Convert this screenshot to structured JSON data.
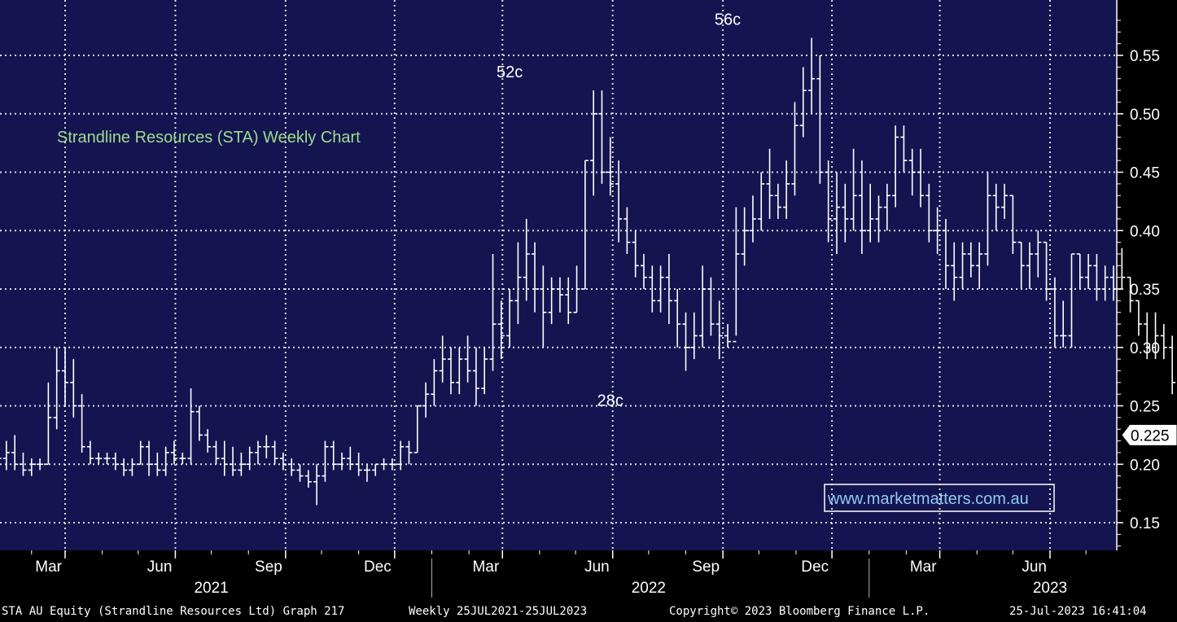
{
  "chart_data": {
    "type": "ohlc",
    "title": "Strandline Resources (STA) Weekly Chart",
    "xlabel": "",
    "ylabel": "",
    "ylim": [
      0.125,
      0.6
    ],
    "y_ticks": [
      "0.15",
      "0.20",
      "0.25",
      "0.30",
      "0.35",
      "0.40",
      "0.45",
      "0.50",
      "0.55"
    ],
    "last_price_label": "0.225",
    "x_month_ticks": [
      {
        "label": "Mar",
        "date": "2021-03-01"
      },
      {
        "label": "Jun",
        "date": "2021-06-01"
      },
      {
        "label": "Sep",
        "date": "2021-09-01"
      },
      {
        "label": "Dec",
        "date": "2021-12-01"
      },
      {
        "label": "Mar",
        "date": "2022-03-01"
      },
      {
        "label": "Jun",
        "date": "2022-06-01"
      },
      {
        "label": "Sep",
        "date": "2022-09-01"
      },
      {
        "label": "Dec",
        "date": "2022-12-01"
      },
      {
        "label": "Mar",
        "date": "2023-03-01"
      },
      {
        "label": "Jun",
        "date": "2023-06-01"
      }
    ],
    "x_year_labels": [
      {
        "label": "2021",
        "date": "2021-07-01"
      },
      {
        "label": "2022",
        "date": "2022-07-01"
      },
      {
        "label": "2023",
        "date": "2023-06-01"
      }
    ],
    "annotations": [
      {
        "text": "52c",
        "date": "2022-03-07",
        "value": 0.52
      },
      {
        "text": "56c",
        "date": "2022-09-05",
        "value": 0.565
      },
      {
        "text": "28c",
        "date": "2022-05-30",
        "value": 0.28
      }
    ],
    "watermark": "www.marketmatters.com.au",
    "series": [
      {
        "name": "STA AU Equity",
        "weekly_ohlc": [
          [
            0.215,
            0.22,
            0.2,
            0.205
          ],
          [
            0.205,
            0.22,
            0.195,
            0.21
          ],
          [
            0.21,
            0.225,
            0.195,
            0.2
          ],
          [
            0.2,
            0.21,
            0.19,
            0.195
          ],
          [
            0.195,
            0.205,
            0.19,
            0.2
          ],
          [
            0.2,
            0.205,
            0.195,
            0.2
          ],
          [
            0.2,
            0.27,
            0.2,
            0.24
          ],
          [
            0.24,
            0.3,
            0.23,
            0.28
          ],
          [
            0.28,
            0.3,
            0.25,
            0.27
          ],
          [
            0.27,
            0.29,
            0.24,
            0.25
          ],
          [
            0.25,
            0.26,
            0.21,
            0.215
          ],
          [
            0.215,
            0.22,
            0.2,
            0.205
          ],
          [
            0.205,
            0.21,
            0.2,
            0.205
          ],
          [
            0.205,
            0.21,
            0.2,
            0.205
          ],
          [
            0.205,
            0.21,
            0.195,
            0.2
          ],
          [
            0.2,
            0.205,
            0.19,
            0.195
          ],
          [
            0.195,
            0.205,
            0.19,
            0.2
          ],
          [
            0.2,
            0.22,
            0.2,
            0.215
          ],
          [
            0.215,
            0.22,
            0.19,
            0.2
          ],
          [
            0.2,
            0.21,
            0.19,
            0.195
          ],
          [
            0.195,
            0.215,
            0.19,
            0.21
          ],
          [
            0.21,
            0.22,
            0.2,
            0.205
          ],
          [
            0.205,
            0.21,
            0.2,
            0.205
          ],
          [
            0.205,
            0.265,
            0.2,
            0.245
          ],
          [
            0.245,
            0.25,
            0.22,
            0.225
          ],
          [
            0.225,
            0.23,
            0.21,
            0.215
          ],
          [
            0.215,
            0.22,
            0.2,
            0.205
          ],
          [
            0.205,
            0.22,
            0.19,
            0.2
          ],
          [
            0.2,
            0.215,
            0.19,
            0.195
          ],
          [
            0.195,
            0.21,
            0.19,
            0.2
          ],
          [
            0.2,
            0.215,
            0.195,
            0.21
          ],
          [
            0.21,
            0.22,
            0.2,
            0.215
          ],
          [
            0.215,
            0.225,
            0.205,
            0.215
          ],
          [
            0.215,
            0.22,
            0.2,
            0.205
          ],
          [
            0.205,
            0.21,
            0.195,
            0.2
          ],
          [
            0.2,
            0.205,
            0.19,
            0.195
          ],
          [
            0.195,
            0.2,
            0.185,
            0.19
          ],
          [
            0.19,
            0.195,
            0.18,
            0.185
          ],
          [
            0.185,
            0.2,
            0.165,
            0.19
          ],
          [
            0.19,
            0.22,
            0.185,
            0.215
          ],
          [
            0.215,
            0.22,
            0.195,
            0.2
          ],
          [
            0.2,
            0.21,
            0.195,
            0.205
          ],
          [
            0.205,
            0.215,
            0.195,
            0.2
          ],
          [
            0.2,
            0.21,
            0.19,
            0.195
          ],
          [
            0.195,
            0.2,
            0.185,
            0.195
          ],
          [
            0.195,
            0.2,
            0.19,
            0.2
          ],
          [
            0.2,
            0.205,
            0.195,
            0.2
          ],
          [
            0.2,
            0.205,
            0.195,
            0.2
          ],
          [
            0.2,
            0.22,
            0.195,
            0.215
          ],
          [
            0.215,
            0.22,
            0.2,
            0.21
          ],
          [
            0.21,
            0.25,
            0.21,
            0.25
          ],
          [
            0.25,
            0.27,
            0.24,
            0.26
          ],
          [
            0.26,
            0.29,
            0.25,
            0.28
          ],
          [
            0.28,
            0.31,
            0.27,
            0.29
          ],
          [
            0.29,
            0.3,
            0.26,
            0.27
          ],
          [
            0.27,
            0.3,
            0.26,
            0.29
          ],
          [
            0.29,
            0.31,
            0.27,
            0.28
          ],
          [
            0.28,
            0.3,
            0.25,
            0.265
          ],
          [
            0.265,
            0.3,
            0.26,
            0.29
          ],
          [
            0.29,
            0.38,
            0.28,
            0.32
          ],
          [
            0.32,
            0.34,
            0.29,
            0.31
          ],
          [
            0.31,
            0.35,
            0.3,
            0.34
          ],
          [
            0.34,
            0.39,
            0.32,
            0.36
          ],
          [
            0.36,
            0.41,
            0.34,
            0.38
          ],
          [
            0.38,
            0.39,
            0.33,
            0.35
          ],
          [
            0.35,
            0.37,
            0.3,
            0.33
          ],
          [
            0.33,
            0.36,
            0.32,
            0.35
          ],
          [
            0.35,
            0.36,
            0.33,
            0.345
          ],
          [
            0.345,
            0.36,
            0.32,
            0.33
          ],
          [
            0.33,
            0.37,
            0.33,
            0.35
          ],
          [
            0.35,
            0.46,
            0.35,
            0.46
          ],
          [
            0.46,
            0.52,
            0.43,
            0.5
          ],
          [
            0.5,
            0.52,
            0.44,
            0.45
          ],
          [
            0.45,
            0.48,
            0.43,
            0.44
          ],
          [
            0.44,
            0.46,
            0.39,
            0.41
          ],
          [
            0.41,
            0.42,
            0.38,
            0.39
          ],
          [
            0.39,
            0.4,
            0.36,
            0.37
          ],
          [
            0.37,
            0.38,
            0.35,
            0.36
          ],
          [
            0.36,
            0.37,
            0.33,
            0.34
          ],
          [
            0.34,
            0.37,
            0.33,
            0.36
          ],
          [
            0.36,
            0.38,
            0.32,
            0.34
          ],
          [
            0.34,
            0.35,
            0.3,
            0.32
          ],
          [
            0.32,
            0.33,
            0.28,
            0.3
          ],
          [
            0.3,
            0.33,
            0.29,
            0.31
          ],
          [
            0.31,
            0.37,
            0.3,
            0.35
          ],
          [
            0.35,
            0.36,
            0.31,
            0.32
          ],
          [
            0.32,
            0.34,
            0.29,
            0.31
          ],
          [
            0.31,
            0.32,
            0.3,
            0.305
          ],
          [
            0.305,
            0.42,
            0.31,
            0.38
          ],
          [
            0.38,
            0.42,
            0.37,
            0.4
          ],
          [
            0.4,
            0.43,
            0.39,
            0.41
          ],
          [
            0.41,
            0.45,
            0.4,
            0.44
          ],
          [
            0.44,
            0.47,
            0.41,
            0.43
          ],
          [
            0.43,
            0.44,
            0.41,
            0.42
          ],
          [
            0.42,
            0.46,
            0.41,
            0.44
          ],
          [
            0.44,
            0.51,
            0.43,
            0.49
          ],
          [
            0.49,
            0.54,
            0.48,
            0.52
          ],
          [
            0.52,
            0.565,
            0.5,
            0.53
          ],
          [
            0.53,
            0.55,
            0.44,
            0.45
          ],
          [
            0.45,
            0.46,
            0.39,
            0.41
          ],
          [
            0.41,
            0.45,
            0.38,
            0.42
          ],
          [
            0.42,
            0.44,
            0.39,
            0.41
          ],
          [
            0.41,
            0.47,
            0.4,
            0.43
          ],
          [
            0.43,
            0.46,
            0.38,
            0.4
          ],
          [
            0.4,
            0.44,
            0.39,
            0.41
          ],
          [
            0.41,
            0.43,
            0.39,
            0.42
          ],
          [
            0.42,
            0.44,
            0.4,
            0.43
          ],
          [
            0.43,
            0.49,
            0.42,
            0.48
          ],
          [
            0.48,
            0.49,
            0.45,
            0.46
          ],
          [
            0.46,
            0.47,
            0.43,
            0.45
          ],
          [
            0.45,
            0.47,
            0.42,
            0.43
          ],
          [
            0.43,
            0.44,
            0.39,
            0.4
          ],
          [
            0.4,
            0.42,
            0.38,
            0.4
          ],
          [
            0.4,
            0.41,
            0.35,
            0.37
          ],
          [
            0.37,
            0.39,
            0.34,
            0.36
          ],
          [
            0.36,
            0.39,
            0.35,
            0.38
          ],
          [
            0.38,
            0.39,
            0.36,
            0.37
          ],
          [
            0.37,
            0.39,
            0.35,
            0.38
          ],
          [
            0.38,
            0.45,
            0.37,
            0.43
          ],
          [
            0.43,
            0.44,
            0.4,
            0.42
          ],
          [
            0.42,
            0.44,
            0.41,
            0.43
          ],
          [
            0.43,
            0.43,
            0.38,
            0.39
          ],
          [
            0.39,
            0.39,
            0.35,
            0.37
          ],
          [
            0.37,
            0.39,
            0.35,
            0.38
          ],
          [
            0.38,
            0.4,
            0.36,
            0.39
          ],
          [
            0.39,
            0.39,
            0.34,
            0.35
          ],
          [
            0.35,
            0.36,
            0.3,
            0.31
          ],
          [
            0.31,
            0.34,
            0.3,
            0.31
          ],
          [
            0.31,
            0.38,
            0.3,
            0.38
          ],
          [
            0.38,
            0.38,
            0.35,
            0.36
          ],
          [
            0.36,
            0.38,
            0.35,
            0.37
          ],
          [
            0.37,
            0.38,
            0.34,
            0.35
          ],
          [
            0.35,
            0.37,
            0.34,
            0.36
          ],
          [
            0.36,
            0.37,
            0.34,
            0.35
          ],
          [
            0.35,
            0.385,
            0.35,
            0.36
          ],
          [
            0.36,
            0.36,
            0.33,
            0.34
          ],
          [
            0.34,
            0.34,
            0.31,
            0.32
          ],
          [
            0.32,
            0.33,
            0.29,
            0.3
          ],
          [
            0.3,
            0.33,
            0.29,
            0.31
          ],
          [
            0.31,
            0.32,
            0.29,
            0.3
          ],
          [
            0.3,
            0.31,
            0.26,
            0.27
          ],
          [
            0.27,
            0.28,
            0.25,
            0.27
          ],
          [
            0.27,
            0.285,
            0.26,
            0.27
          ],
          [
            0.27,
            0.27,
            0.245,
            0.25
          ],
          [
            0.25,
            0.25,
            0.225,
            0.235
          ],
          [
            0.235,
            0.235,
            0.22,
            0.225
          ]
        ]
      }
    ]
  },
  "footer": {
    "security": "STA AU Equity (Strandline Resources Ltd) Graph 217",
    "range": "Weekly 25JUL2021-25JUL2023",
    "copyright": "Copyright© 2023 Bloomberg Finance L.P.",
    "timestamp": "25-Jul-2023 16:41:04"
  },
  "colors": {
    "plot_bg": "#141450",
    "grid": "#ffffff",
    "bars": "#ffffff",
    "title": "#9fdc8c",
    "watermark_border": "#ffffff"
  }
}
